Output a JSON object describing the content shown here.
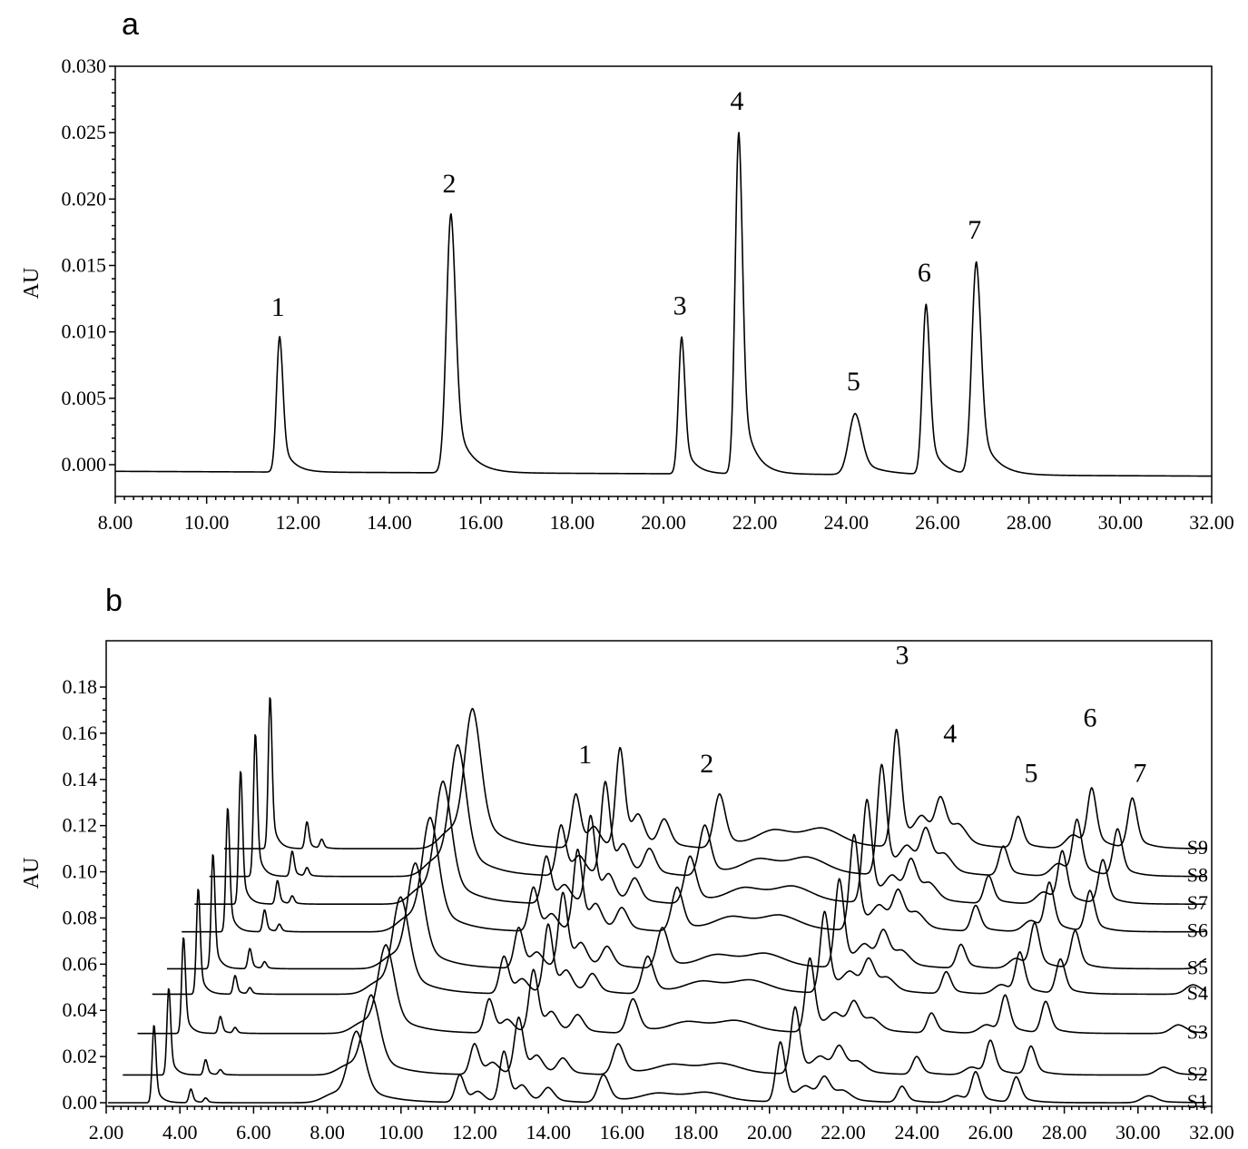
{
  "chart_data": [
    {
      "panel": "a",
      "type": "line",
      "ylabel": "AU",
      "xlim": [
        8.0,
        32.0
      ],
      "ylim": [
        -0.0025,
        0.03
      ],
      "x_ticks": [
        "8.00",
        "10.00",
        "12.00",
        "14.00",
        "16.00",
        "18.00",
        "20.00",
        "22.00",
        "24.00",
        "26.00",
        "28.00",
        "30.00",
        "32.00"
      ],
      "y_ticks": [
        "0.000",
        "0.005",
        "0.010",
        "0.015",
        "0.020",
        "0.025",
        "0.030"
      ],
      "baseline": -0.0005,
      "peaks": [
        {
          "label": "1",
          "x": 11.6,
          "y": 0.0097
        },
        {
          "label": "2",
          "x": 15.35,
          "y": 0.019
        },
        {
          "label": "3",
          "x": 20.4,
          "y": 0.0098
        },
        {
          "label": "4",
          "x": 21.65,
          "y": 0.0252
        },
        {
          "label": "5",
          "x": 24.2,
          "y": 0.0041
        },
        {
          "label": "6",
          "x": 25.75,
          "y": 0.0123
        },
        {
          "label": "7",
          "x": 26.85,
          "y": 0.0155
        }
      ]
    },
    {
      "panel": "b",
      "type": "line",
      "ylabel": "AU",
      "xlim": [
        2.0,
        32.0
      ],
      "ylim": [
        -0.003,
        0.198
      ],
      "x_ticks": [
        "2.00",
        "4.00",
        "6.00",
        "8.00",
        "10.00",
        "12.00",
        "14.00",
        "16.00",
        "18.00",
        "20.00",
        "22.00",
        "24.00",
        "26.00",
        "28.00",
        "30.00",
        "32.00"
      ],
      "y_ticks": [
        "0.00",
        "0.02",
        "0.04",
        "0.06",
        "0.08",
        "0.10",
        "0.12",
        "0.14",
        "0.16",
        "0.18"
      ],
      "peak_labels": [
        {
          "label": "1",
          "x": 15.0,
          "y": 0.147
        },
        {
          "label": "2",
          "x": 18.3,
          "y": 0.143
        },
        {
          "label": "3",
          "x": 23.6,
          "y": 0.19
        },
        {
          "label": "4",
          "x": 24.9,
          "y": 0.156
        },
        {
          "label": "5",
          "x": 27.1,
          "y": 0.139
        },
        {
          "label": "6",
          "x": 28.7,
          "y": 0.163
        },
        {
          "label": "7",
          "x": 30.05,
          "y": 0.139
        }
      ],
      "series": [
        {
          "name": "S1",
          "baseline": 0.0,
          "x_offset": 0.0
        },
        {
          "name": "S2",
          "baseline": 0.012,
          "x_offset": 0.4
        },
        {
          "name": "S3",
          "baseline": 0.03,
          "x_offset": 0.8
        },
        {
          "name": "S4",
          "baseline": 0.047,
          "x_offset": 1.2
        },
        {
          "name": "S5",
          "baseline": 0.058,
          "x_offset": 1.6
        },
        {
          "name": "S6",
          "baseline": 0.074,
          "x_offset": 2.0
        },
        {
          "name": "S7",
          "baseline": 0.086,
          "x_offset": 2.35
        },
        {
          "name": "S8",
          "baseline": 0.098,
          "x_offset": 2.75
        },
        {
          "name": "S9",
          "baseline": 0.11,
          "x_offset": 3.15
        }
      ],
      "profile": [
        {
          "x": 3.3,
          "h": 0.034,
          "w": 0.05
        },
        {
          "x": 4.3,
          "h": 0.006,
          "w": 0.05
        },
        {
          "x": 4.7,
          "h": 0.002,
          "w": 0.05
        },
        {
          "x": 8.2,
          "h": 0.004,
          "w": 0.3
        },
        {
          "x": 8.8,
          "h": 0.03,
          "w": 0.22
        },
        {
          "x": 11.6,
          "h": 0.012,
          "w": 0.12
        },
        {
          "x": 12.1,
          "h": 0.004,
          "w": 0.15
        },
        {
          "x": 12.8,
          "h": 0.022,
          "w": 0.12
        },
        {
          "x": 13.3,
          "h": 0.006,
          "w": 0.15
        },
        {
          "x": 14.0,
          "h": 0.006,
          "w": 0.15
        },
        {
          "x": 15.5,
          "h": 0.012,
          "w": 0.15
        },
        {
          "x": 17.0,
          "h": 0.004,
          "w": 0.5
        },
        {
          "x": 18.3,
          "h": 0.004,
          "w": 0.5
        },
        {
          "x": 20.3,
          "h": 0.026,
          "w": 0.12
        },
        {
          "x": 21.0,
          "h": 0.006,
          "w": 0.2
        },
        {
          "x": 21.5,
          "h": 0.01,
          "w": 0.15
        },
        {
          "x": 22.0,
          "h": 0.004,
          "w": 0.2
        },
        {
          "x": 23.6,
          "h": 0.007,
          "w": 0.12
        },
        {
          "x": 25.1,
          "h": 0.003,
          "w": 0.2
        },
        {
          "x": 25.6,
          "h": 0.013,
          "w": 0.12
        },
        {
          "x": 26.7,
          "h": 0.011,
          "w": 0.12
        },
        {
          "x": 30.3,
          "h": 0.003,
          "w": 0.2
        }
      ]
    }
  ]
}
